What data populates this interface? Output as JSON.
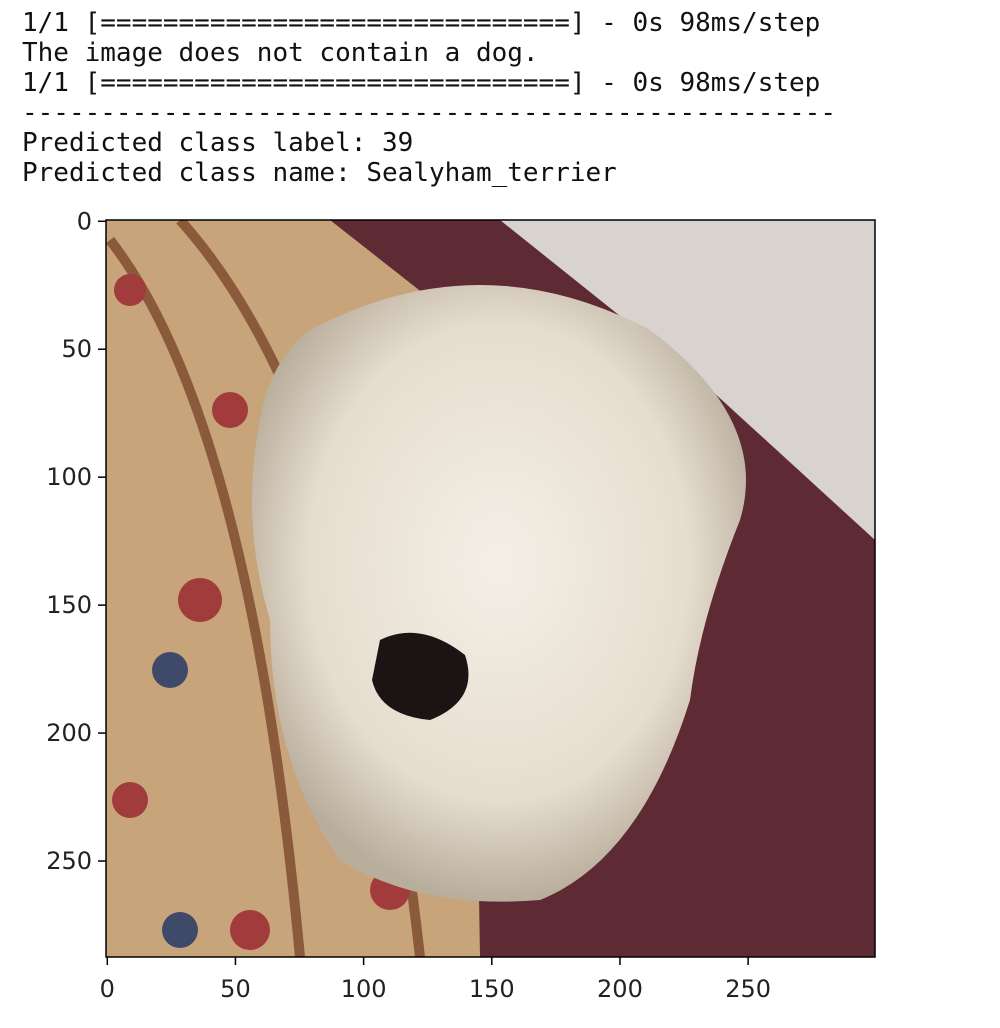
{
  "output": {
    "lines": [
      "1/1 [==============================] - 0s 98ms/step",
      "The image does not contain a dog.",
      "1/1 [==============================] - 0s 98ms/step",
      "----------------------------------------------------",
      "Predicted class label: 39",
      "Predicted class name: Sealyham_terrier"
    ]
  },
  "figure": {
    "xlim": [
      -0.5,
      299.5
    ],
    "ylim": [
      287.5,
      -0.5
    ],
    "xticks": [
      0,
      50,
      100,
      150,
      200,
      250
    ],
    "yticks": [
      0,
      50,
      100,
      150,
      200,
      250
    ]
  }
}
